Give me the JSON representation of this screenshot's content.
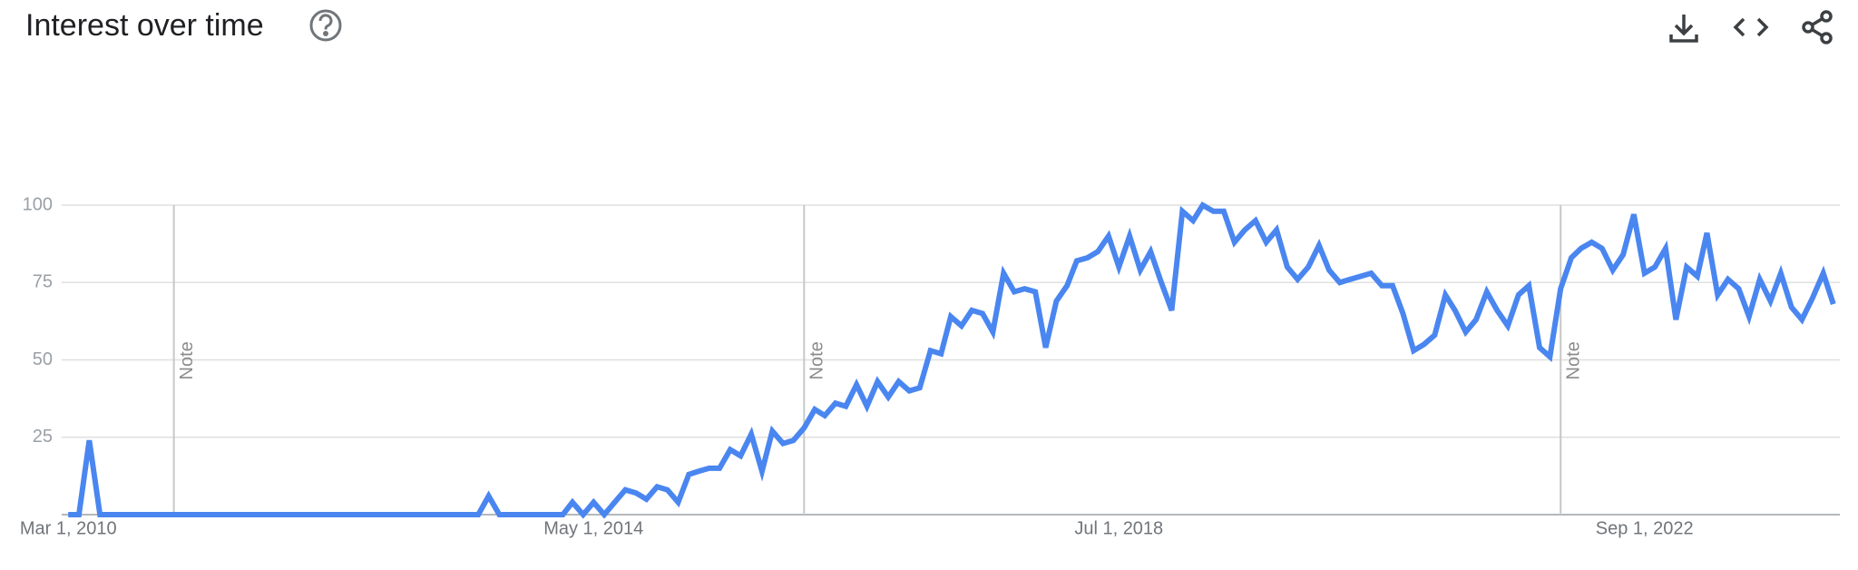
{
  "chart_data": {
    "type": "line",
    "title": "Interest over time",
    "x": [
      "2010-03-01",
      "2010-04-01",
      "2010-05-01",
      "2010-06-01",
      "2010-07-01",
      "2010-08-01",
      "2010-09-01",
      "2010-10-01",
      "2010-11-01",
      "2010-12-01",
      "2011-01-01",
      "2011-02-01",
      "2011-03-01",
      "2011-04-01",
      "2011-05-01",
      "2011-06-01",
      "2011-07-01",
      "2011-08-01",
      "2011-09-01",
      "2011-10-01",
      "2011-11-01",
      "2011-12-01",
      "2012-01-01",
      "2012-02-01",
      "2012-03-01",
      "2012-04-01",
      "2012-05-01",
      "2012-06-01",
      "2012-07-01",
      "2012-08-01",
      "2012-09-01",
      "2012-10-01",
      "2012-11-01",
      "2012-12-01",
      "2013-01-01",
      "2013-02-01",
      "2013-03-01",
      "2013-04-01",
      "2013-05-01",
      "2013-06-01",
      "2013-07-01",
      "2013-08-01",
      "2013-09-01",
      "2013-10-01",
      "2013-11-01",
      "2013-12-01",
      "2014-01-01",
      "2014-02-01",
      "2014-03-01",
      "2014-04-01",
      "2014-05-01",
      "2014-06-01",
      "2014-07-01",
      "2014-08-01",
      "2014-09-01",
      "2014-10-01",
      "2014-11-01",
      "2014-12-01",
      "2015-01-01",
      "2015-02-01",
      "2015-03-01",
      "2015-04-01",
      "2015-05-01",
      "2015-06-01",
      "2015-07-01",
      "2015-08-01",
      "2015-09-01",
      "2015-10-01",
      "2015-11-01",
      "2015-12-01",
      "2016-01-01",
      "2016-02-01",
      "2016-03-01",
      "2016-04-01",
      "2016-05-01",
      "2016-06-01",
      "2016-07-01",
      "2016-08-01",
      "2016-09-01",
      "2016-10-01",
      "2016-11-01",
      "2016-12-01",
      "2017-01-01",
      "2017-02-01",
      "2017-03-01",
      "2017-04-01",
      "2017-05-01",
      "2017-06-01",
      "2017-07-01",
      "2017-08-01",
      "2017-09-01",
      "2017-10-01",
      "2017-11-01",
      "2017-12-01",
      "2018-01-01",
      "2018-02-01",
      "2018-03-01",
      "2018-04-01",
      "2018-05-01",
      "2018-06-01",
      "2018-07-01",
      "2018-08-01",
      "2018-09-01",
      "2018-10-01",
      "2018-11-01",
      "2018-12-01",
      "2019-01-01",
      "2019-02-01",
      "2019-03-01",
      "2019-04-01",
      "2019-05-01",
      "2019-06-01",
      "2019-07-01",
      "2019-08-01",
      "2019-09-01",
      "2019-10-01",
      "2019-11-01",
      "2019-12-01",
      "2020-01-01",
      "2020-02-01",
      "2020-03-01",
      "2020-04-01",
      "2020-05-01",
      "2020-06-01",
      "2020-07-01",
      "2020-08-01",
      "2020-09-01",
      "2020-10-01",
      "2020-11-01",
      "2020-12-01",
      "2021-01-01",
      "2021-02-01",
      "2021-03-01",
      "2021-04-01",
      "2021-05-01",
      "2021-06-01",
      "2021-07-01",
      "2021-08-01",
      "2021-09-01",
      "2021-10-01",
      "2021-11-01",
      "2021-12-01",
      "2022-01-01",
      "2022-02-01",
      "2022-03-01",
      "2022-04-01",
      "2022-05-01",
      "2022-06-01",
      "2022-07-01",
      "2022-08-01",
      "2022-09-01",
      "2022-10-01",
      "2022-11-01",
      "2022-12-01",
      "2023-01-01",
      "2023-02-01",
      "2023-03-01",
      "2023-04-01",
      "2023-05-01",
      "2023-06-01",
      "2023-07-01",
      "2023-08-01",
      "2023-09-01",
      "2023-10-01",
      "2023-11-01",
      "2023-12-01",
      "2024-01-01",
      "2024-02-01",
      "2024-03-01"
    ],
    "series": [
      {
        "color": "#4a86f0",
        "values": [
          0,
          0,
          24,
          0,
          0,
          0,
          0,
          0,
          0,
          0,
          0,
          0,
          0,
          0,
          0,
          0,
          0,
          0,
          0,
          0,
          0,
          0,
          0,
          0,
          0,
          0,
          0,
          0,
          0,
          0,
          0,
          0,
          0,
          0,
          0,
          0,
          0,
          0,
          0,
          0,
          6,
          0,
          0,
          0,
          0,
          0,
          0,
          0,
          4,
          0,
          4,
          0,
          4,
          8,
          7,
          5,
          9,
          8,
          4,
          13,
          14,
          15,
          15,
          21,
          19,
          26,
          14,
          27,
          23,
          24,
          28,
          34,
          32,
          36,
          35,
          42,
          35,
          43,
          38,
          43,
          40,
          41,
          53,
          52,
          64,
          61,
          66,
          65,
          59,
          78,
          72,
          73,
          72,
          54,
          69,
          74,
          82,
          83,
          85,
          90,
          80,
          90,
          79,
          85,
          75,
          66,
          98,
          95,
          100,
          98,
          98,
          88,
          92,
          95,
          88,
          92,
          80,
          76,
          80,
          87,
          79,
          75,
          76,
          77,
          78,
          74,
          74,
          65,
          53,
          55,
          58,
          71,
          66,
          59,
          63,
          72,
          66,
          61,
          71,
          74,
          54,
          51,
          73,
          83,
          86,
          88,
          86,
          79,
          84,
          97,
          78,
          80,
          86,
          63,
          80,
          77,
          91,
          71,
          76,
          73,
          64,
          76,
          69,
          78,
          67,
          63,
          70,
          78,
          68
        ]
      }
    ],
    "xlim": [
      "2010-02-10",
      "2024-03-20"
    ],
    "xticks": [
      {
        "value": "2010-03-01",
        "label": "Mar 1, 2010"
      },
      {
        "value": "2014-05-01",
        "label": "May 1, 2014"
      },
      {
        "value": "2018-07-01",
        "label": "Jul 1, 2018"
      },
      {
        "value": "2022-09-01",
        "label": "Sep 1, 2022"
      }
    ],
    "ylim": [
      0,
      100
    ],
    "yticks": [
      25,
      50,
      75,
      100
    ],
    "grid": true,
    "annotations": [
      {
        "x": "2011-01-01",
        "text": "Note"
      },
      {
        "x": "2016-01-01",
        "text": "Note"
      },
      {
        "x": "2022-01-01",
        "text": "Note"
      }
    ]
  }
}
